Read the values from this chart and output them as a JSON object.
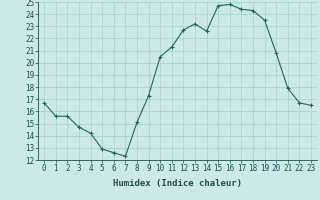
{
  "x": [
    0,
    1,
    2,
    3,
    4,
    5,
    6,
    7,
    8,
    9,
    10,
    11,
    12,
    13,
    14,
    15,
    16,
    17,
    18,
    19,
    20,
    21,
    22,
    23
  ],
  "y": [
    16.7,
    15.6,
    15.6,
    14.7,
    14.2,
    12.9,
    12.6,
    12.3,
    15.1,
    17.3,
    20.5,
    21.3,
    22.7,
    23.2,
    22.6,
    24.7,
    24.8,
    24.4,
    24.3,
    23.5,
    20.8,
    17.9,
    16.7,
    16.5
  ],
  "line_color": "#1a6b5a",
  "marker": "+",
  "marker_size": 3,
  "marker_lw": 0.8,
  "line_width": 0.8,
  "bg_color": "#cce8e8",
  "grid_color": "#aacece",
  "xlabel": "Humidex (Indice chaleur)",
  "ylim": [
    12,
    25
  ],
  "xlim": [
    -0.5,
    23.5
  ],
  "yticks": [
    12,
    13,
    14,
    15,
    16,
    17,
    18,
    19,
    20,
    21,
    22,
    23,
    24,
    25
  ],
  "xticks": [
    0,
    1,
    2,
    3,
    4,
    5,
    6,
    7,
    8,
    9,
    10,
    11,
    12,
    13,
    14,
    15,
    16,
    17,
    18,
    19,
    20,
    21,
    22,
    23
  ],
  "tick_fontsize": 5.5,
  "label_fontsize": 6.5,
  "label_color": "#1a5050"
}
